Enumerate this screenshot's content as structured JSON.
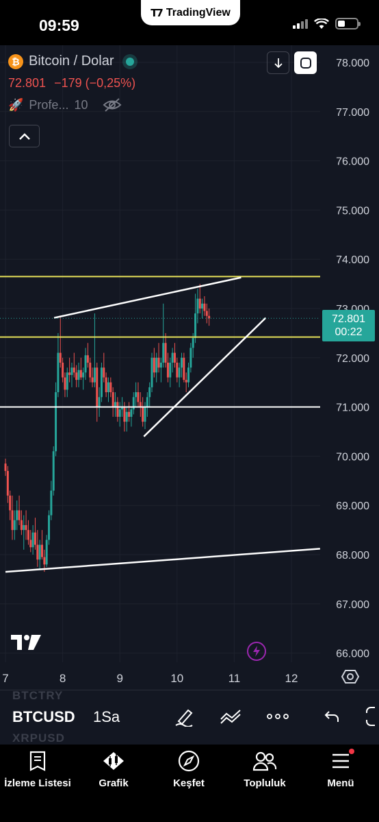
{
  "status_bar": {
    "time": "09:59",
    "app_pill": "TradingView",
    "battery_level": 0.4
  },
  "legend": {
    "symbol_icon": "₿",
    "symbol_name": "Bitcoin / Dolar",
    "last_price": "72.801",
    "change": "−179",
    "change_pct": "(−0,25%)",
    "indicator_name": "Profe...",
    "indicator_value": "10"
  },
  "price_label": {
    "price": "72.801",
    "countdown": "00:22"
  },
  "chart_data": {
    "type": "candlestick",
    "y_axis_labels": [
      "78.000",
      "77.000",
      "76.000",
      "75.000",
      "74.000",
      "73.000",
      "72.000",
      "71.000",
      "70.000",
      "69.000",
      "68.000",
      "67.000",
      "66.000"
    ],
    "x_axis_labels": [
      "7",
      "8",
      "9",
      "10",
      "11",
      "12"
    ],
    "ylim": [
      66000,
      78000
    ],
    "last_price": 72801,
    "horizontal_lines": [
      {
        "price": 73650,
        "color": "#e8e35a"
      },
      {
        "price": 72420,
        "color": "#e8e35a"
      },
      {
        "price": 71000,
        "color": "#ffffff"
      }
    ],
    "trend_lines": [
      {
        "from": [
          7.0,
          67650
        ],
        "to": [
          12.5,
          68120
        ],
        "color": "#ffffff"
      },
      {
        "from": [
          7.85,
          72810
        ],
        "to": [
          11.12,
          73630
        ],
        "color": "#ffffff"
      },
      {
        "from": [
          9.42,
          70400
        ],
        "to": [
          11.55,
          72810
        ],
        "color": "#ffffff"
      }
    ],
    "candles": [
      [
        7.0,
        69850,
        69950,
        69600,
        69700
      ],
      [
        7.04,
        69700,
        69800,
        69050,
        69200
      ],
      [
        7.08,
        69200,
        69300,
        68700,
        68900
      ],
      [
        7.12,
        68900,
        69200,
        68300,
        68500
      ],
      [
        7.16,
        68500,
        68900,
        68300,
        68700
      ],
      [
        7.2,
        68700,
        69100,
        68500,
        68900
      ],
      [
        7.24,
        68900,
        69200,
        68600,
        68700
      ],
      [
        7.28,
        68700,
        68900,
        68400,
        68500
      ],
      [
        7.32,
        68500,
        68800,
        68100,
        68600
      ],
      [
        7.36,
        68600,
        68900,
        68300,
        68500
      ],
      [
        7.4,
        68500,
        68700,
        68200,
        68300
      ],
      [
        7.44,
        68300,
        68500,
        68050,
        68150
      ],
      [
        7.48,
        68150,
        68600,
        68000,
        68450
      ],
      [
        7.52,
        68450,
        68750,
        68100,
        68200
      ],
      [
        7.56,
        68200,
        68500,
        67750,
        67900
      ],
      [
        7.6,
        67900,
        68300,
        67700,
        68200
      ],
      [
        7.64,
        68200,
        68500,
        67900,
        67950
      ],
      [
        7.68,
        67950,
        68100,
        67650,
        67800
      ],
      [
        7.72,
        67800,
        68400,
        67750,
        68300
      ],
      [
        7.76,
        68300,
        68900,
        68200,
        68800
      ],
      [
        7.8,
        68800,
        69500,
        68700,
        69300
      ],
      [
        7.84,
        69300,
        70200,
        69200,
        70100
      ],
      [
        7.88,
        70100,
        71500,
        70000,
        71300
      ],
      [
        7.92,
        71300,
        72500,
        71200,
        72100
      ],
      [
        7.96,
        72100,
        72850,
        71800,
        71900
      ],
      [
        8.0,
        71900,
        72000,
        71500,
        71600
      ],
      [
        8.04,
        71600,
        71700,
        71200,
        71350
      ],
      [
        8.08,
        71350,
        71800,
        71200,
        71700
      ],
      [
        8.12,
        71700,
        72000,
        71500,
        71650
      ],
      [
        8.16,
        71650,
        71900,
        71400,
        71800
      ],
      [
        8.2,
        71800,
        72100,
        71600,
        71700
      ],
      [
        8.24,
        71700,
        71850,
        71400,
        71550
      ],
      [
        8.28,
        71550,
        71900,
        71400,
        71750
      ],
      [
        8.32,
        71750,
        72000,
        71550,
        71600
      ],
      [
        8.36,
        71600,
        71800,
        71350,
        71700
      ],
      [
        8.4,
        71700,
        72200,
        71550,
        72050
      ],
      [
        8.44,
        72050,
        72300,
        71800,
        71900
      ],
      [
        8.48,
        71900,
        72000,
        71500,
        71600
      ],
      [
        8.52,
        71600,
        71800,
        71400,
        71500
      ],
      [
        8.56,
        71500,
        72900,
        71400,
        71800
      ],
      [
        8.6,
        71800,
        71900,
        70700,
        71000
      ],
      [
        8.64,
        71000,
        71400,
        70800,
        71200
      ],
      [
        8.68,
        71200,
        71900,
        71100,
        71800
      ],
      [
        8.72,
        71800,
        72100,
        71500,
        71600
      ],
      [
        8.76,
        71600,
        71700,
        71200,
        71300
      ],
      [
        8.8,
        71300,
        71600,
        71100,
        71500
      ],
      [
        8.84,
        71500,
        71600,
        71200,
        71300
      ],
      [
        8.88,
        71300,
        71400,
        70800,
        71000
      ],
      [
        8.92,
        71000,
        71300,
        70800,
        71100
      ],
      [
        8.96,
        71100,
        71200,
        70700,
        70800
      ],
      [
        9.0,
        70800,
        71100,
        70600,
        70950
      ],
      [
        9.04,
        70950,
        71200,
        70800,
        71000
      ],
      [
        9.08,
        71000,
        71100,
        70500,
        70700
      ],
      [
        9.12,
        70700,
        71000,
        70500,
        70900
      ],
      [
        9.16,
        70900,
        71100,
        70700,
        70800
      ],
      [
        9.2,
        70800,
        71000,
        70600,
        70950
      ],
      [
        9.24,
        70950,
        71300,
        70850,
        71200
      ],
      [
        9.28,
        71200,
        71500,
        71000,
        71300
      ],
      [
        9.32,
        71300,
        71500,
        71000,
        71100
      ],
      [
        9.36,
        71100,
        71300,
        70800,
        71000
      ],
      [
        9.4,
        71000,
        71200,
        70600,
        70700
      ],
      [
        9.44,
        70700,
        71100,
        70550,
        71000
      ],
      [
        9.48,
        71000,
        71300,
        70800,
        71200
      ],
      [
        9.52,
        71200,
        71500,
        71000,
        71400
      ],
      [
        9.56,
        71400,
        72100,
        71300,
        72000
      ],
      [
        9.6,
        72000,
        72200,
        71600,
        71700
      ],
      [
        9.64,
        71700,
        72100,
        71500,
        72000
      ],
      [
        9.68,
        72000,
        72300,
        71700,
        71800
      ],
      [
        9.72,
        71800,
        72000,
        71500,
        71900
      ],
      [
        9.76,
        71900,
        73100,
        71800,
        72300
      ],
      [
        9.8,
        72300,
        72500,
        71800,
        71900
      ],
      [
        9.84,
        71900,
        72100,
        71500,
        71600
      ],
      [
        9.88,
        71600,
        72000,
        71400,
        71900
      ],
      [
        9.92,
        71900,
        72200,
        71700,
        72100
      ],
      [
        9.96,
        72100,
        72300,
        71800,
        71900
      ],
      [
        10.0,
        71900,
        72000,
        71500,
        71600
      ],
      [
        10.04,
        71600,
        71900,
        71400,
        71800
      ],
      [
        10.08,
        71800,
        72100,
        71600,
        72000
      ],
      [
        10.12,
        72000,
        72100,
        71500,
        71550
      ],
      [
        10.16,
        71550,
        71700,
        71300,
        71500
      ],
      [
        10.2,
        71500,
        71900,
        71400,
        71800
      ],
      [
        10.24,
        71800,
        72300,
        71700,
        72200
      ],
      [
        10.28,
        72200,
        72500,
        72000,
        72400
      ],
      [
        10.32,
        72400,
        73300,
        72300,
        72900
      ],
      [
        10.36,
        72900,
        73400,
        72700,
        73200
      ],
      [
        10.4,
        73200,
        73500,
        72900,
        73000
      ],
      [
        10.44,
        73000,
        73200,
        72800,
        73100
      ],
      [
        10.48,
        73100,
        73250,
        72850,
        72950
      ],
      [
        10.52,
        72950,
        73100,
        72700,
        72850
      ],
      [
        10.56,
        72850,
        73000,
        72650,
        72800
      ]
    ]
  },
  "toolbar": {
    "symbol": "BTCUSD",
    "interval": "1Sa",
    "ghost_above": "BTCTRY",
    "ghost_below": "XRPUSD"
  },
  "bottom_nav": [
    {
      "label": "İzleme Listesi",
      "icon": "watchlist-icon"
    },
    {
      "label": "Grafik",
      "icon": "chart-icon"
    },
    {
      "label": "Keşfet",
      "icon": "compass-icon"
    },
    {
      "label": "Topluluk",
      "icon": "community-icon"
    },
    {
      "label": "Menü",
      "icon": "menu-icon"
    }
  ],
  "colors": {
    "up": "#26a69a",
    "down": "#ef5350",
    "bg": "#131722",
    "grid": "#1e222d",
    "accent_yellow": "#e8e35a"
  }
}
